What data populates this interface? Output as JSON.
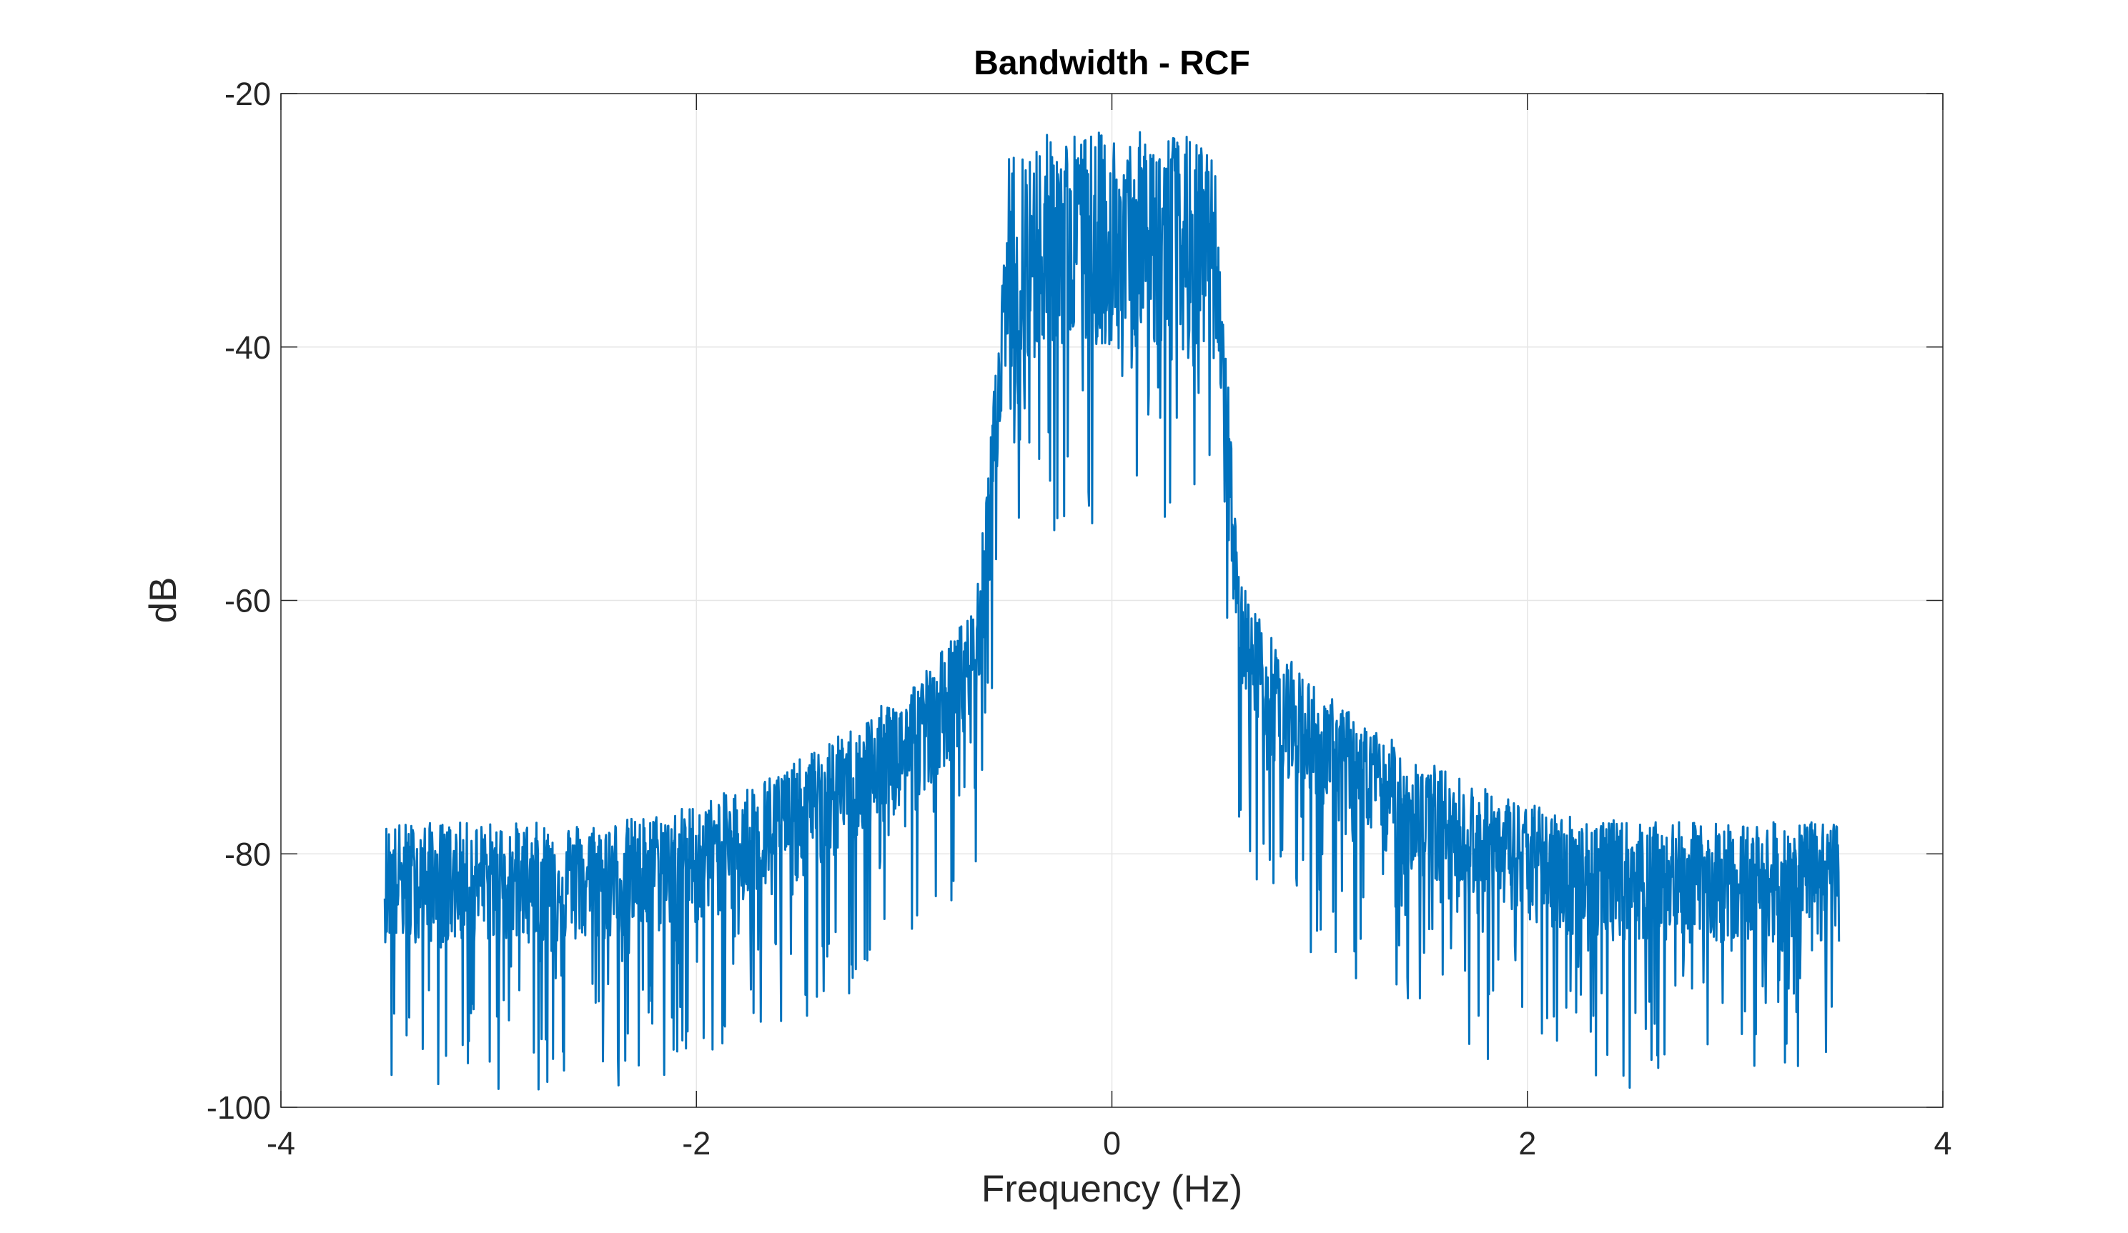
{
  "chart_data": {
    "type": "line",
    "title": "Bandwidth - RCF",
    "xlabel": "Frequency (Hz)",
    "ylabel": "dB",
    "xlim": [
      -4,
      4
    ],
    "ylim": [
      -100,
      -20
    ],
    "xticks": [
      -4,
      -2,
      0,
      2,
      4
    ],
    "yticks": [
      -100,
      -80,
      -60,
      -40,
      -20
    ],
    "xtick_labels": [
      "-4",
      "-2",
      "0",
      "2",
      "4"
    ],
    "ytick_labels": [
      "-100",
      "-80",
      "-60",
      "-40",
      "-20"
    ],
    "grid": true,
    "series_color": "#0072BD",
    "series": [
      {
        "x": [
          -3.5,
          -3.25,
          -3.0,
          -2.75,
          -2.5,
          -2.25,
          -2.0,
          -1.75,
          -1.5,
          -1.25,
          -1.0,
          -0.875,
          -0.75,
          -0.65,
          -0.6,
          -0.55,
          -0.5,
          -0.4,
          -0.3,
          -0.2,
          -0.1,
          0.0,
          0.1,
          0.2,
          0.3,
          0.4,
          0.5,
          0.55,
          0.6,
          0.65,
          0.75,
          0.875,
          1.0,
          1.25,
          1.5,
          1.75,
          2.0,
          2.25,
          2.5,
          2.75,
          3.0,
          3.25,
          3.5
        ],
        "y": [
          -82,
          -82,
          -82,
          -82,
          -82,
          -81.5,
          -80.5,
          -79,
          -77,
          -74.5,
          -71.5,
          -69.5,
          -67,
          -64,
          -55,
          -44,
          -34,
          -32.5,
          -32,
          -32,
          -32,
          -32,
          -32,
          -32,
          -32,
          -32.5,
          -34,
          -44,
          -60,
          -64,
          -67,
          -69.5,
          -71.5,
          -74.5,
          -77,
          -79,
          -80.5,
          -81.5,
          -82,
          -82,
          -82,
          -82,
          -82
        ]
      }
    ]
  }
}
